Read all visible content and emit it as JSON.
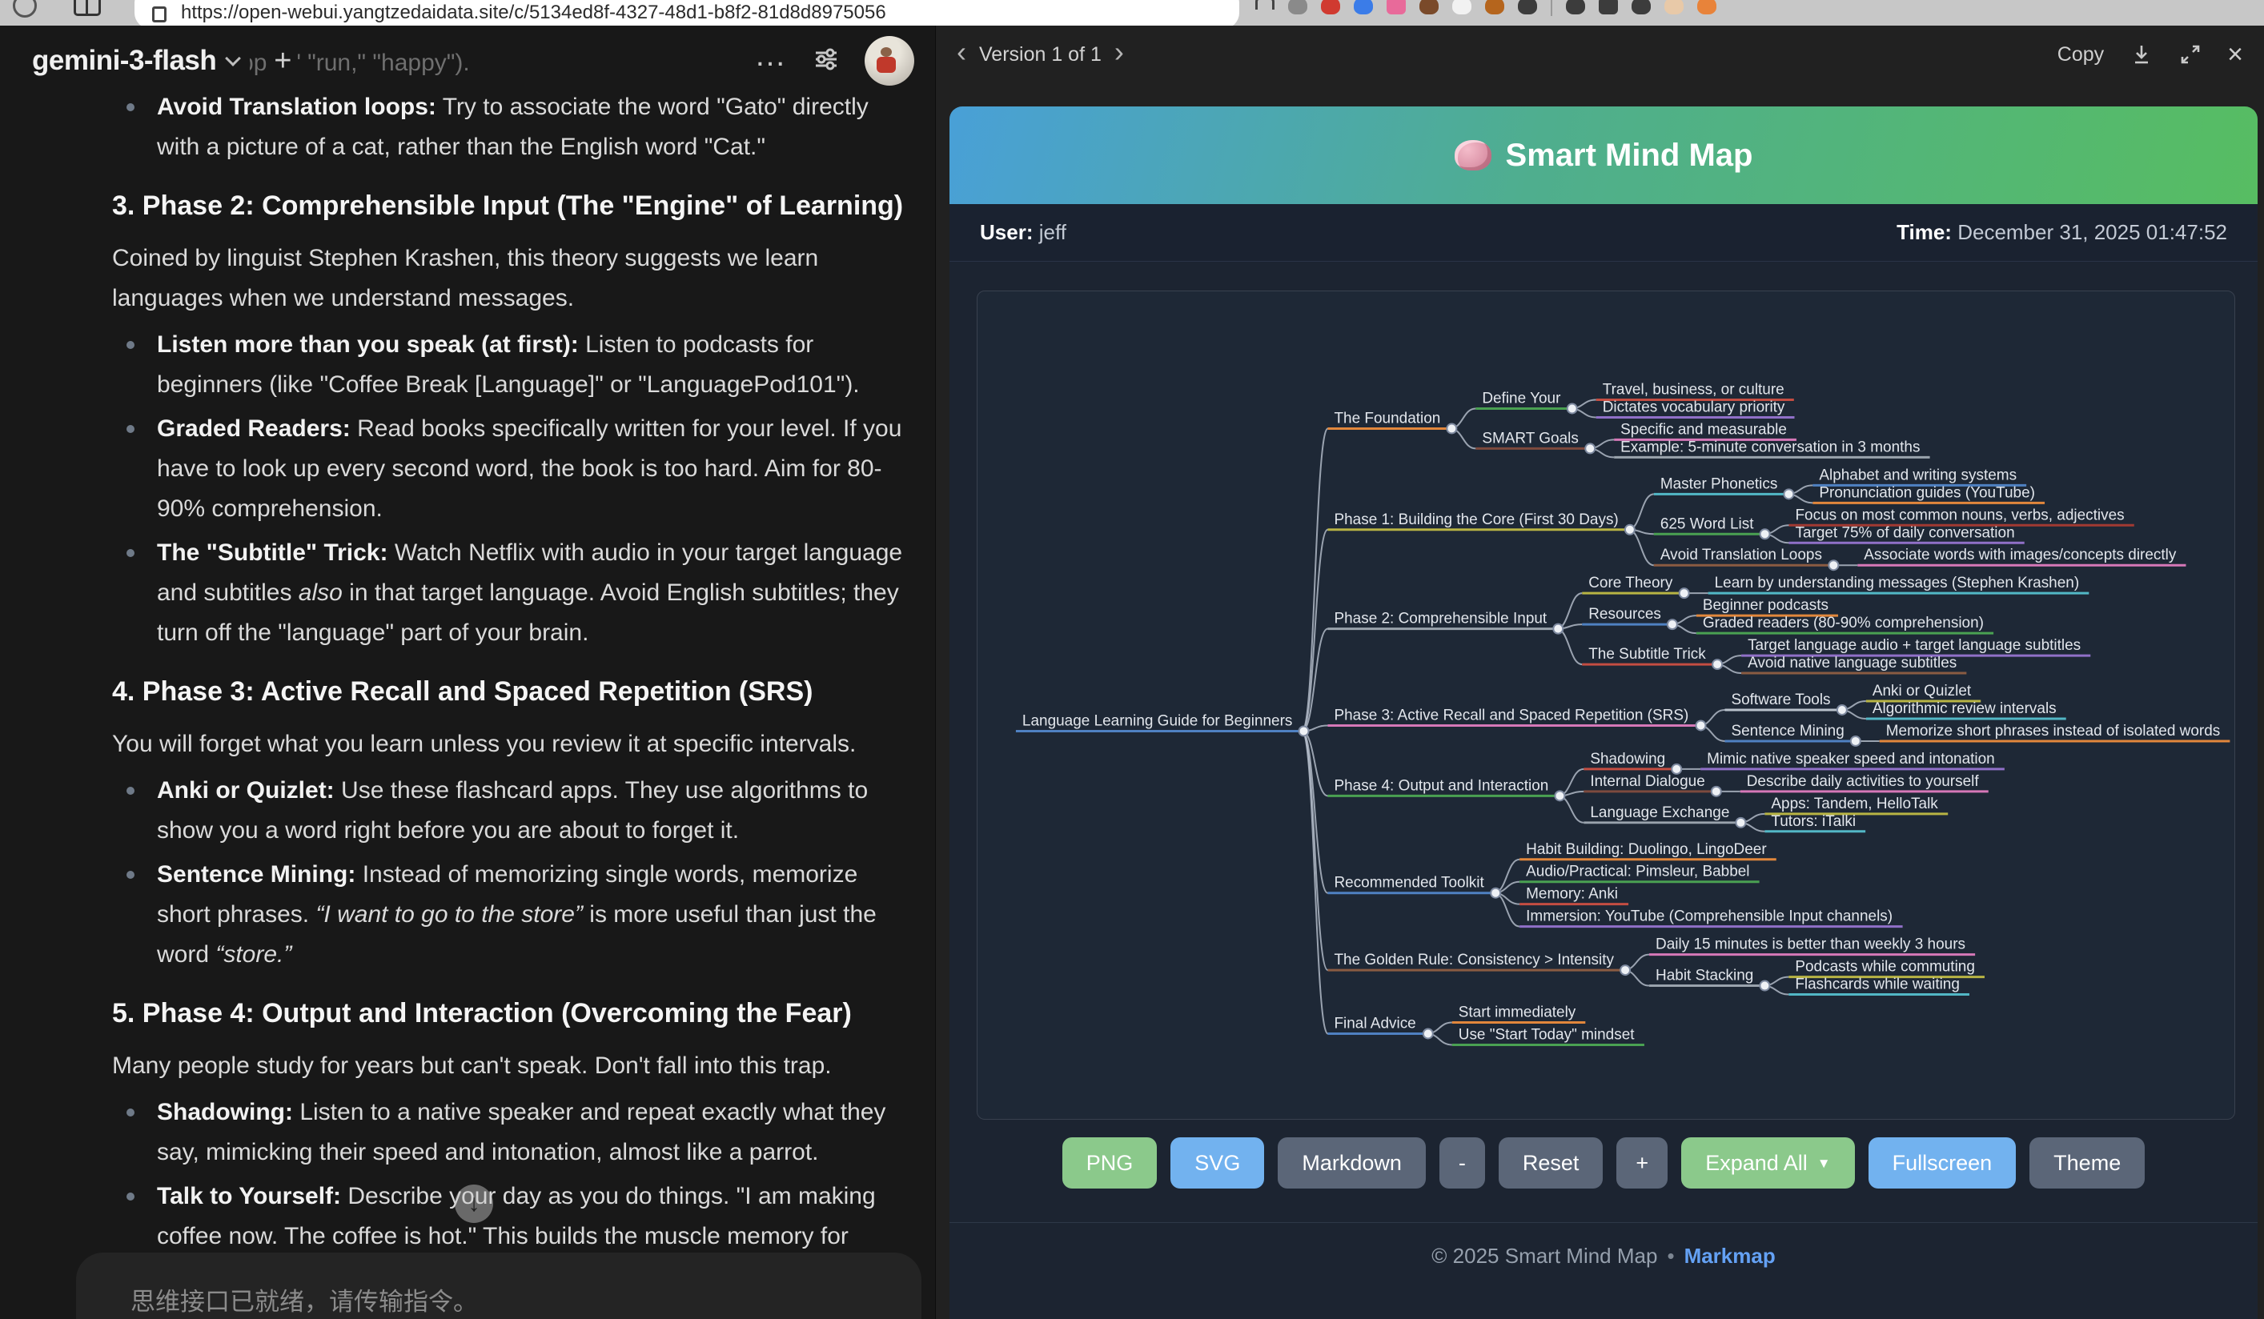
{
  "browser": {
    "url": "https://open-webui.yangtzedaidata.site/c/5134ed8f-4327-48d1-b8f2-81d8d8975056",
    "extensions": [
      {
        "name": "bookmark-icon",
        "color": "#555",
        "shape": "outline"
      },
      {
        "name": "extension-icon-gray",
        "color": "#8a8a8a",
        "shape": "round"
      },
      {
        "name": "extension-icon-red",
        "color": "#d03a30",
        "shape": "round"
      },
      {
        "name": "extension-icon-blue",
        "color": "#3b7ce8",
        "shape": "round"
      },
      {
        "name": "extension-icon-pink",
        "color": "#e86a9a",
        "shape": "sq"
      },
      {
        "name": "extension-icon-brown",
        "color": "#7a4a2a",
        "shape": "round"
      },
      {
        "name": "extension-icon-white",
        "color": "#f2f2f2",
        "shape": "round"
      },
      {
        "name": "extension-icon-tan",
        "color": "#b5651d",
        "shape": "round"
      },
      {
        "name": "extension-icon-dark1",
        "color": "#3c3c3c",
        "shape": "round"
      },
      {
        "name": "separator",
        "color": "#9a9a9a",
        "shape": "sep"
      },
      {
        "name": "extension-icon-dark2",
        "color": "#3c3c3c",
        "shape": "round"
      },
      {
        "name": "extension-icon-dark3",
        "color": "#3c3c3c",
        "shape": "sq"
      },
      {
        "name": "extension-icon-dark4",
        "color": "#3c3c3c",
        "shape": "round"
      },
      {
        "name": "profile-avatar-icon",
        "color": "#e8c9a8",
        "shape": "round"
      },
      {
        "name": "extension-icon-orange",
        "color": "#e8833a",
        "shape": "round"
      }
    ]
  },
  "chat": {
    "model_name": "gemini-3-flash",
    "input_placeholder": "思维接口已就绪，请传输指令。",
    "doc_blocks": [
      {
        "type": "faded",
        "segs": [
          [
            "r",
            "(e.g., \"apple,\" \"run,\" \"happy\")."
          ]
        ]
      },
      {
        "type": "bullet",
        "segs": [
          [
            "b",
            "Avoid Translation loops:"
          ],
          [
            "r",
            " Try to associate the word \"Gato\" directly with a picture of a cat, rather than the English word \"Cat.\""
          ]
        ]
      },
      {
        "type": "h3",
        "segs": [
          [
            "r",
            "3. Phase 2: Comprehensible Input (The \"Engine\" of Learning)"
          ]
        ]
      },
      {
        "type": "p",
        "segs": [
          [
            "r",
            "Coined by linguist Stephen Krashen, this theory suggests we learn languages when we understand messages."
          ]
        ]
      },
      {
        "type": "bullet",
        "segs": [
          [
            "b",
            "Listen more than you speak (at first):"
          ],
          [
            "r",
            " Listen to podcasts for beginners (like \"Coffee Break [Language]\" or \"LanguagePod101\")."
          ]
        ]
      },
      {
        "type": "bullet",
        "segs": [
          [
            "b",
            "Graded Readers:"
          ],
          [
            "r",
            " Read books specifically written for your level. If you have to look up every second word, the book is too hard. Aim for 80-90% comprehension."
          ]
        ]
      },
      {
        "type": "bullet",
        "segs": [
          [
            "b",
            "The \"Subtitle\" Trick:"
          ],
          [
            "r",
            " Watch Netflix with audio in your target language and subtitles "
          ],
          [
            "i",
            "also"
          ],
          [
            "r",
            " in that target language. Avoid English subtitles; they turn off the \"language\" part of your brain."
          ]
        ]
      },
      {
        "type": "h3",
        "segs": [
          [
            "r",
            "4. Phase 3: Active Recall and Spaced Repetition (SRS)"
          ]
        ]
      },
      {
        "type": "p",
        "segs": [
          [
            "r",
            "You will forget what you learn unless you review it at specific intervals."
          ]
        ]
      },
      {
        "type": "bullet",
        "segs": [
          [
            "b",
            "Anki or Quizlet:"
          ],
          [
            "r",
            " Use these flashcard apps. They use algorithms to show you a word right before you are about to forget it."
          ]
        ]
      },
      {
        "type": "bullet",
        "segs": [
          [
            "b",
            "Sentence Mining:"
          ],
          [
            "r",
            " Instead of memorizing single words, memorize short phrases. "
          ],
          [
            "i",
            "“I want to go to the store”"
          ],
          [
            "r",
            " is more useful than just the word "
          ],
          [
            "i",
            "“store.”"
          ]
        ]
      },
      {
        "type": "h3",
        "segs": [
          [
            "r",
            "5. Phase 4: Output and Interaction (Overcoming the Fear)"
          ]
        ]
      },
      {
        "type": "p",
        "segs": [
          [
            "r",
            "Many people study for years but can't speak. Don't fall into this trap."
          ]
        ]
      },
      {
        "type": "bullet",
        "segs": [
          [
            "b",
            "Shadowing:"
          ],
          [
            "r",
            " Listen to a native speaker and repeat exactly what they say, mimicking their speed and intonation, almost like a parrot."
          ]
        ]
      },
      {
        "type": "bullet",
        "segs": [
          [
            "b",
            "Talk to Yourself:"
          ],
          [
            "r",
            " Describe your day as you do things. \"I am making coffee now. The coffee is hot.\" This builds the muscle memory for"
          ]
        ]
      }
    ]
  },
  "viewer": {
    "version_label": "Version 1 of 1",
    "prev_icon": "‹",
    "next_icon": "›",
    "copy_label": "Copy",
    "close_icon": "×",
    "app_title": "Smart Mind Map",
    "user_label": "User:",
    "user_value": "jeff",
    "time_label": "Time:",
    "time_value": "December 31, 2025 01:47:52",
    "toolbar": [
      {
        "label": "PNG",
        "variant": "green"
      },
      {
        "label": "SVG",
        "variant": "blue"
      },
      {
        "label": "Markdown",
        "variant": "gray"
      },
      {
        "label": "-",
        "variant": "gray",
        "narrow": true
      },
      {
        "label": "Reset",
        "variant": "gray"
      },
      {
        "label": "+",
        "variant": "gray",
        "narrow": true
      },
      {
        "label": "Expand All",
        "variant": "green",
        "caret": "▼"
      },
      {
        "label": "Fullscreen",
        "variant": "blue"
      },
      {
        "label": "Theme",
        "variant": "gray"
      }
    ],
    "footer": {
      "copyright": "© 2025 Smart Mind Map",
      "separator": "•",
      "link": "Markmap"
    }
  },
  "mindmap": {
    "type": "mindmap",
    "link_color": "#b9c2cf",
    "text_color": "#e2e6ec",
    "root": {
      "label": "Language Learning Guide for Beginners",
      "color": "#4f81c2",
      "children": [
        {
          "label": "The Foundation",
          "color": "#e2873c",
          "children": [
            {
              "label": "Define Your",
              "color": "#4aa152",
              "children": [
                {
                  "label": "Travel, business, or culture",
                  "color": "#c44d42"
                },
                {
                  "label": "Dictates vocabulary priority",
                  "color": "#9070c8"
                }
              ]
            },
            {
              "label": "SMART Goals",
              "color": "#7d4a3e",
              "children": [
                {
                  "label": "Specific and measurable",
                  "color": "#d678b8"
                },
                {
                  "label": "Example: 5-minute conversation in 3 months",
                  "color": "#9aa3ad"
                }
              ]
            }
          ]
        },
        {
          "label": "Phase 1: Building the Core (First 30 Days)",
          "color": "#b8b444",
          "children": [
            {
              "label": "Master Phonetics",
              "color": "#52b7c6",
              "children": [
                {
                  "label": "Alphabet and writing systems",
                  "color": "#4f81c2"
                },
                {
                  "label": "Pronunciation guides (YouTube)",
                  "color": "#e2873c"
                }
              ]
            },
            {
              "label": "625 Word List",
              "color": "#4aa152",
              "children": [
                {
                  "label": "Focus on most common nouns, verbs, adjectives",
                  "color": "#a13a32"
                },
                {
                  "label": "Target 75% of daily conversation",
                  "color": "#9070c8"
                }
              ]
            },
            {
              "label": "Avoid Translation Loops",
              "color": "#8a5b42",
              "children": [
                {
                  "label": "Associate words with images/concepts directly",
                  "color": "#d678b8"
                }
              ]
            }
          ]
        },
        {
          "label": "Phase 2: Comprehensible Input",
          "color": "#9aa3ad",
          "children": [
            {
              "label": "Core Theory",
              "color": "#b8b444",
              "children": [
                {
                  "label": "Learn by understanding messages (Stephen Krashen)",
                  "color": "#52b7c6"
                }
              ]
            },
            {
              "label": "Resources",
              "color": "#4f81c2",
              "children": [
                {
                  "label": "Beginner podcasts",
                  "color": "#e2873c"
                },
                {
                  "label": "Graded readers (80-90% comprehension)",
                  "color": "#4aa152"
                }
              ]
            },
            {
              "label": "The Subtitle Trick",
              "color": "#c44d42",
              "children": [
                {
                  "label": "Target language audio + target language subtitles",
                  "color": "#9070c8"
                },
                {
                  "label": "Avoid native language subtitles",
                  "color": "#8a5b42"
                }
              ]
            }
          ]
        },
        {
          "label": "Phase 3: Active Recall and Spaced Repetition (SRS)",
          "color": "#d678b8",
          "children": [
            {
              "label": "Software Tools",
              "color": "#b9c2cc",
              "children": [
                {
                  "label": "Anki or Quizlet",
                  "color": "#b8b444"
                },
                {
                  "label": "Algorithmic review intervals",
                  "color": "#52b7c6"
                }
              ]
            },
            {
              "label": "Sentence Mining",
              "color": "#4f81c2",
              "children": [
                {
                  "label": "Memorize short phrases instead of isolated words",
                  "color": "#e2873c"
                }
              ]
            }
          ]
        },
        {
          "label": "Phase 4: Output and Interaction",
          "color": "#4aa152",
          "children": [
            {
              "label": "Shadowing",
              "color": "#c44d42",
              "children": [
                {
                  "label": "Mimic native speaker speed and intonation",
                  "color": "#9070c8"
                }
              ]
            },
            {
              "label": "Internal Dialogue",
              "color": "#7d4a3e",
              "children": [
                {
                  "label": "Describe daily activities to yourself",
                  "color": "#d678b8"
                }
              ]
            },
            {
              "label": "Language Exchange",
              "color": "#9aa3ad",
              "children": [
                {
                  "label": "Apps: Tandem, HelloTalk",
                  "color": "#b8b444"
                },
                {
                  "label": "Tutors: iTalki",
                  "color": "#52b7c6"
                }
              ]
            }
          ]
        },
        {
          "label": "Recommended Toolkit",
          "color": "#4f81c2",
          "children": [
            {
              "label": "Habit Building: Duolingo, LingoDeer",
              "color": "#e2873c"
            },
            {
              "label": "Audio/Practical: Pimsleur, Babbel",
              "color": "#4aa152"
            },
            {
              "label": "Memory: Anki",
              "color": "#c44d42"
            },
            {
              "label": "Immersion: YouTube (Comprehensible Input channels)",
              "color": "#9070c8"
            }
          ]
        },
        {
          "label": "The Golden Rule: Consistency > Intensity",
          "color": "#8a5b42",
          "children": [
            {
              "label": "Daily 15 minutes is better than weekly 3 hours",
              "color": "#d678b8"
            },
            {
              "label": "Habit Stacking",
              "color": "#9aa3ad",
              "children": [
                {
                  "label": "Podcasts while commuting",
                  "color": "#b8b444"
                },
                {
                  "label": "Flashcards while waiting",
                  "color": "#52b7c6"
                }
              ]
            }
          ]
        },
        {
          "label": "Final Advice",
          "color": "#4f81c2",
          "children": [
            {
              "label": "Start immediately",
              "color": "#e2873c"
            },
            {
              "label": "Use \"Start Today\" mindset",
              "color": "#4aa152"
            }
          ]
        }
      ]
    }
  }
}
